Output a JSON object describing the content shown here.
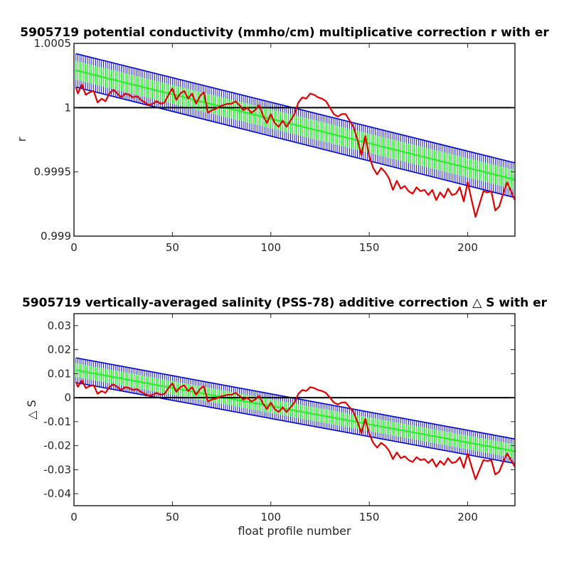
{
  "chart_data": [
    {
      "type": "line",
      "title": "5905719 potential conductivity (mmho/cm) multiplicative correction r with er",
      "xlabel": "",
      "ylabel": "r",
      "xlim": [
        0,
        224
      ],
      "ylim": [
        0.999,
        1.0005
      ],
      "x_ticks": [
        0,
        50,
        100,
        150,
        200
      ],
      "y_ticks": [
        0.999,
        0.9995,
        1,
        1.0005
      ],
      "x_tick_labels": [
        "0",
        "50",
        "100",
        "150",
        "200"
      ],
      "y_tick_labels": [
        "0.999",
        "0.9995",
        "1",
        "1.0005"
      ],
      "reference_line": 1,
      "fit": {
        "x": [
          1,
          224
        ],
        "center": [
          1.00029,
          0.99944
        ],
        "upper": [
          1.00042,
          0.99957
        ],
        "lower": [
          1.00016,
          0.9993
        ]
      },
      "series": [
        {
          "x": [
            1,
            2,
            4,
            6,
            8,
            10,
            12,
            14,
            16,
            18,
            20,
            22,
            24,
            26,
            28,
            30,
            32,
            34,
            36,
            38,
            40,
            42,
            44,
            46,
            48,
            50,
            52,
            54,
            56,
            58,
            60,
            62,
            64,
            66,
            68,
            70,
            72,
            74,
            76,
            78,
            80,
            82,
            84,
            86,
            88,
            90,
            92,
            94,
            96,
            98,
            100,
            102,
            104,
            106,
            108,
            110,
            112,
            114,
            116,
            118,
            120,
            122,
            124,
            126,
            128,
            130,
            132,
            134,
            136,
            138,
            140,
            142,
            144,
            146,
            148,
            150,
            152,
            154,
            156,
            158,
            160,
            162,
            164,
            166,
            168,
            170,
            172,
            174,
            176,
            178,
            180,
            182,
            184,
            186,
            188,
            190,
            192,
            194,
            196,
            198,
            200,
            202,
            204,
            206,
            208,
            210,
            212,
            214,
            216,
            218,
            220,
            222,
            224
          ],
          "values": [
            1.00016,
            1.00011,
            1.00018,
            1.0001,
            1.00012,
            1.00013,
            1.00004,
            1.00007,
            1.00005,
            1.00011,
            1.00014,
            1.00011,
            1.00008,
            1.00011,
            1.0001,
            1.00008,
            1.00009,
            1.00006,
            1.00004,
            1.00002,
            1.00003,
            1.00005,
            1.00003,
            1.00004,
            1.0001,
            1.00015,
            1.00006,
            1.00011,
            1.00013,
            1.00007,
            1.00011,
            1.00003,
            1.00009,
            1.00012,
            0.99996,
            0.99998,
            0.99999,
            1.00001,
            1.00002,
            1.00003,
            1.00003,
            1.00005,
            1.00002,
            0.99998,
            1.0,
            0.99996,
            0.99998,
            1.00002,
            0.99994,
            0.99988,
            0.99995,
            0.99988,
            0.99985,
            0.9999,
            0.99985,
            0.9999,
            0.99995,
            1.00004,
            1.00008,
            1.00007,
            1.00011,
            1.0001,
            1.00008,
            1.00007,
            1.00005,
            1.0,
            0.99995,
            0.99993,
            0.99995,
            0.99995,
            0.9999,
            0.99985,
            0.99975,
            0.99963,
            0.99978,
            0.99962,
            0.99953,
            0.99948,
            0.99953,
            0.9995,
            0.99945,
            0.99936,
            0.99943,
            0.99937,
            0.99939,
            0.99935,
            0.99933,
            0.99938,
            0.99935,
            0.99936,
            0.99932,
            0.99936,
            0.99928,
            0.99934,
            0.9993,
            0.99937,
            0.99932,
            0.99933,
            0.99938,
            0.99927,
            0.99942,
            0.99928,
            0.99915,
            0.99925,
            0.99935,
            0.99934,
            0.99935,
            0.9992,
            0.99923,
            0.99933,
            0.99942,
            0.99935,
            0.99928
          ]
        }
      ]
    },
    {
      "type": "line",
      "title": "5905719 vertically-averaged salinity (PSS-78) additive correction △ S with er",
      "xlabel": "float profile number",
      "ylabel": "△ S",
      "xlim": [
        0,
        224
      ],
      "ylim": [
        -0.045,
        0.035
      ],
      "x_ticks": [
        0,
        50,
        100,
        150,
        200
      ],
      "y_ticks": [
        -0.04,
        -0.03,
        -0.02,
        -0.01,
        0,
        0.01,
        0.02,
        0.03
      ],
      "x_tick_labels": [
        "0",
        "50",
        "100",
        "150",
        "200"
      ],
      "y_tick_labels": [
        "-0.04",
        "-0.03",
        "-0.02",
        "-0.01",
        "0",
        "0.01",
        "0.02",
        "0.03"
      ],
      "reference_line": 0,
      "fit": {
        "x": [
          1,
          224
        ],
        "center": [
          0.0115,
          -0.0223
        ],
        "upper": [
          0.0166,
          -0.0172
        ],
        "lower": [
          0.0063,
          -0.0274
        ]
      },
      "series": [
        {
          "x": [
            1,
            2,
            4,
            6,
            8,
            10,
            12,
            14,
            16,
            18,
            20,
            22,
            24,
            26,
            28,
            30,
            32,
            34,
            36,
            38,
            40,
            42,
            44,
            46,
            48,
            50,
            52,
            54,
            56,
            58,
            60,
            62,
            64,
            66,
            68,
            70,
            72,
            74,
            76,
            78,
            80,
            82,
            84,
            86,
            88,
            90,
            92,
            94,
            96,
            98,
            100,
            102,
            104,
            106,
            108,
            110,
            112,
            114,
            116,
            118,
            120,
            122,
            124,
            126,
            128,
            130,
            132,
            134,
            136,
            138,
            140,
            142,
            144,
            146,
            148,
            150,
            152,
            154,
            156,
            158,
            160,
            162,
            164,
            166,
            168,
            170,
            172,
            174,
            176,
            178,
            180,
            182,
            184,
            186,
            188,
            190,
            192,
            194,
            196,
            198,
            200,
            202,
            204,
            206,
            208,
            210,
            212,
            214,
            216,
            218,
            220,
            222,
            224
          ],
          "values": [
            0.0065,
            0.0045,
            0.0072,
            0.004,
            0.0048,
            0.0052,
            0.0016,
            0.0028,
            0.002,
            0.0044,
            0.0056,
            0.0044,
            0.0032,
            0.0044,
            0.004,
            0.0032,
            0.0036,
            0.0024,
            0.0016,
            0.0008,
            0.0012,
            0.002,
            0.0012,
            0.0016,
            0.004,
            0.006,
            0.0024,
            0.0044,
            0.0052,
            0.0028,
            0.0044,
            0.0012,
            0.0036,
            0.0048,
            -0.0016,
            -0.0008,
            -0.0004,
            0.0004,
            0.0008,
            0.0012,
            0.0012,
            0.002,
            0.0008,
            -0.0008,
            0.0,
            -0.0016,
            -0.0008,
            0.0008,
            -0.0024,
            -0.0048,
            -0.002,
            -0.0048,
            -0.006,
            -0.004,
            -0.006,
            -0.004,
            -0.002,
            0.0016,
            0.0032,
            0.0028,
            0.0044,
            0.004,
            0.0032,
            0.0028,
            0.002,
            0.0,
            -0.002,
            -0.0028,
            -0.002,
            -0.002,
            -0.004,
            -0.006,
            -0.01,
            -0.0148,
            -0.0088,
            -0.0152,
            -0.0188,
            -0.0208,
            -0.0188,
            -0.02,
            -0.022,
            -0.0256,
            -0.0228,
            -0.0252,
            -0.0244,
            -0.026,
            -0.0268,
            -0.0248,
            -0.026,
            -0.0256,
            -0.0272,
            -0.0256,
            -0.0288,
            -0.0264,
            -0.028,
            -0.0252,
            -0.0272,
            -0.0268,
            -0.0248,
            -0.0292,
            -0.0232,
            -0.0288,
            -0.034,
            -0.03,
            -0.026,
            -0.0264,
            -0.026,
            -0.032,
            -0.0308,
            -0.0268,
            -0.0232,
            -0.026,
            -0.0288
          ]
        }
      ]
    }
  ]
}
